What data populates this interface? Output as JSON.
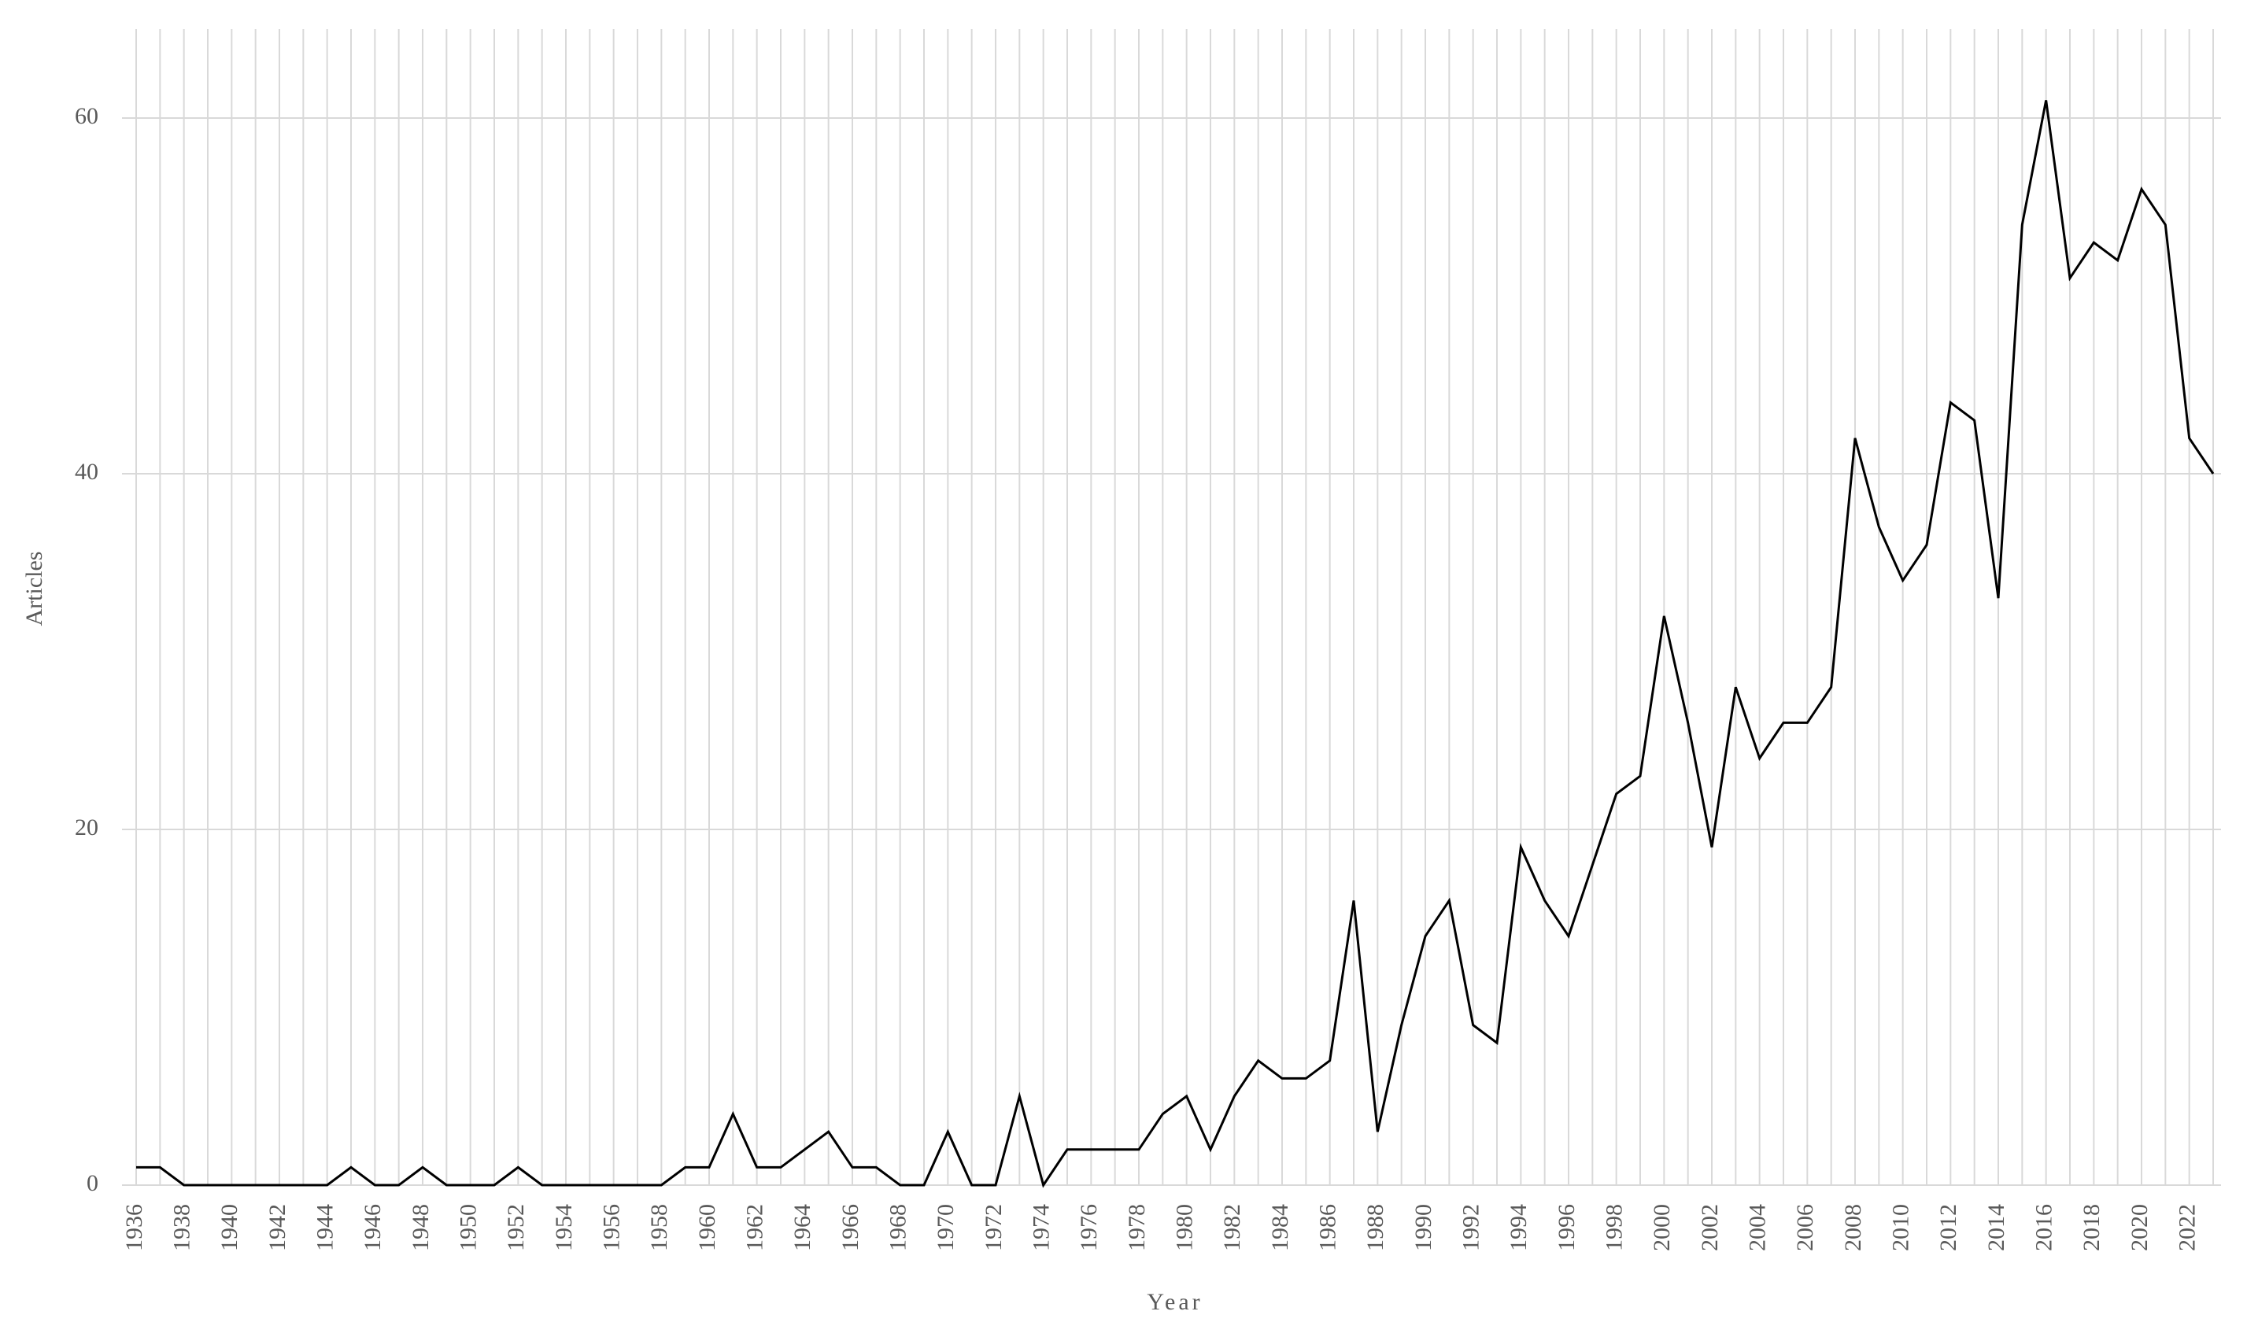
{
  "chart_data": {
    "type": "line",
    "x_label": "Year",
    "y_label": "Articles",
    "x": [
      1936,
      1937,
      1938,
      1939,
      1940,
      1941,
      1942,
      1943,
      1944,
      1945,
      1946,
      1947,
      1948,
      1949,
      1950,
      1951,
      1952,
      1953,
      1954,
      1955,
      1956,
      1957,
      1958,
      1959,
      1960,
      1961,
      1962,
      1963,
      1964,
      1965,
      1966,
      1967,
      1968,
      1969,
      1970,
      1971,
      1972,
      1973,
      1974,
      1975,
      1976,
      1977,
      1978,
      1979,
      1980,
      1981,
      1982,
      1983,
      1984,
      1985,
      1986,
      1987,
      1988,
      1989,
      1990,
      1991,
      1992,
      1993,
      1994,
      1995,
      1996,
      1997,
      1998,
      1999,
      2000,
      2001,
      2002,
      2003,
      2004,
      2005,
      2006,
      2007,
      2008,
      2009,
      2010,
      2011,
      2012,
      2013,
      2014,
      2015,
      2016,
      2017,
      2018,
      2019,
      2020,
      2021,
      2022,
      2023
    ],
    "series": [
      {
        "name": "Articles",
        "color": "#000000",
        "values": [
          1,
          1,
          0,
          0,
          0,
          0,
          0,
          0,
          0,
          1,
          0,
          0,
          1,
          0,
          0,
          0,
          1,
          0,
          0,
          0,
          0,
          0,
          0,
          1,
          1,
          4,
          1,
          1,
          2,
          3,
          1,
          1,
          0,
          0,
          3,
          0,
          0,
          5,
          0,
          2,
          2,
          2,
          2,
          4,
          5,
          2,
          5,
          7,
          6,
          6,
          7,
          16,
          3,
          9,
          14,
          16,
          9,
          8,
          19,
          16,
          14,
          18,
          22,
          23,
          32,
          26,
          19,
          28,
          24,
          26,
          26,
          28,
          42,
          37,
          34,
          36,
          44,
          43,
          33,
          54,
          61,
          51,
          53,
          52,
          56,
          54,
          42,
          40
        ]
      }
    ],
    "xlim": [
      1936,
      2023
    ],
    "xticks": [
      1936,
      1938,
      1940,
      1942,
      1944,
      1946,
      1948,
      1950,
      1952,
      1954,
      1956,
      1958,
      1960,
      1962,
      1964,
      1966,
      1968,
      1970,
      1972,
      1974,
      1976,
      1978,
      1980,
      1982,
      1984,
      1986,
      1988,
      1990,
      1992,
      1994,
      1996,
      1998,
      2000,
      2002,
      2004,
      2006,
      2008,
      2010,
      2012,
      2014,
      2016,
      2018,
      2020,
      2022
    ],
    "ylim": [
      0,
      65
    ],
    "yticks": [
      0,
      20,
      40,
      60
    ],
    "grid": true
  }
}
